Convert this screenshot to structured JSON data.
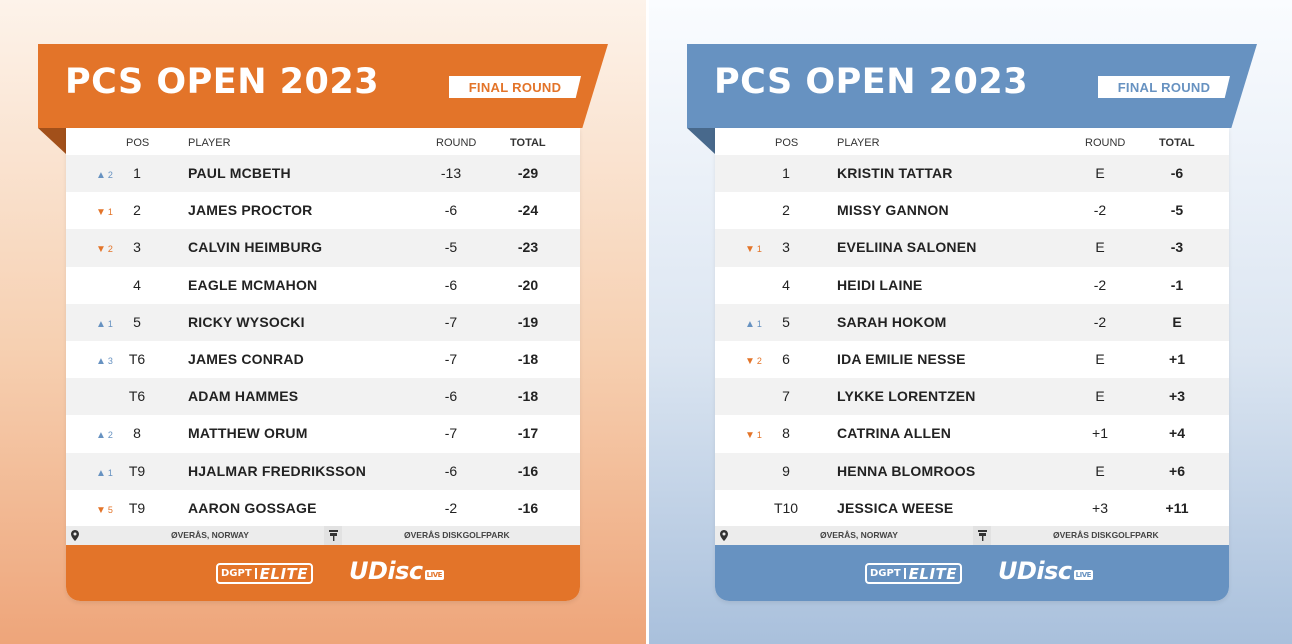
{
  "colors": {
    "orange": "#e37429",
    "blue": "#6792c1",
    "up": "#6792c1",
    "down": "#e37429"
  },
  "icons": {
    "location": "map-pin-icon",
    "course": "basket-icon"
  },
  "left": {
    "title": "PCS OPEN 2023",
    "round_label": "FINAL ROUND",
    "headers": {
      "pos": "POS",
      "player": "PLAYER",
      "round": "ROUND",
      "total": "TOTAL"
    },
    "rows": [
      {
        "move_dir": "up",
        "move": "2",
        "pos": "1",
        "player": "PAUL MCBETH",
        "round": "-13",
        "total": "-29"
      },
      {
        "move_dir": "down",
        "move": "1",
        "pos": "2",
        "player": "JAMES PROCTOR",
        "round": "-6",
        "total": "-24"
      },
      {
        "move_dir": "down",
        "move": "2",
        "pos": "3",
        "player": "CALVIN HEIMBURG",
        "round": "-5",
        "total": "-23"
      },
      {
        "move_dir": "",
        "move": "",
        "pos": "4",
        "player": "EAGLE MCMAHON",
        "round": "-6",
        "total": "-20"
      },
      {
        "move_dir": "up",
        "move": "1",
        "pos": "5",
        "player": "RICKY WYSOCKI",
        "round": "-7",
        "total": "-19"
      },
      {
        "move_dir": "up",
        "move": "3",
        "pos": "T6",
        "player": "JAMES CONRAD",
        "round": "-7",
        "total": "-18"
      },
      {
        "move_dir": "",
        "move": "",
        "pos": "T6",
        "player": "ADAM HAMMES",
        "round": "-6",
        "total": "-18"
      },
      {
        "move_dir": "up",
        "move": "2",
        "pos": "8",
        "player": "MATTHEW ORUM",
        "round": "-7",
        "total": "-17"
      },
      {
        "move_dir": "up",
        "move": "1",
        "pos": "T9",
        "player": "HJALMAR FREDRIKSSON",
        "round": "-6",
        "total": "-16"
      },
      {
        "move_dir": "down",
        "move": "5",
        "pos": "T9",
        "player": "AARON GOSSAGE",
        "round": "-2",
        "total": "-16"
      }
    ],
    "location": "ØVERÅS, NORWAY",
    "course": "ØVERÅS DISKGOLFPARK",
    "logo_dgpt_left": "DGPT",
    "logo_dgpt_right": "ELITE",
    "logo_udisc": "UDisc",
    "logo_live": "LIVE"
  },
  "right": {
    "title": "PCS OPEN 2023",
    "round_label": "FINAL ROUND",
    "headers": {
      "pos": "POS",
      "player": "PLAYER",
      "round": "ROUND",
      "total": "TOTAL"
    },
    "rows": [
      {
        "move_dir": "",
        "move": "",
        "pos": "1",
        "player": "KRISTIN TATTAR",
        "round": "E",
        "total": "-6"
      },
      {
        "move_dir": "",
        "move": "",
        "pos": "2",
        "player": "MISSY GANNON",
        "round": "-2",
        "total": "-5"
      },
      {
        "move_dir": "down",
        "move": "1",
        "pos": "3",
        "player": "EVELIINA SALONEN",
        "round": "E",
        "total": "-3"
      },
      {
        "move_dir": "",
        "move": "",
        "pos": "4",
        "player": "HEIDI LAINE",
        "round": "-2",
        "total": "-1"
      },
      {
        "move_dir": "up",
        "move": "1",
        "pos": "5",
        "player": "SARAH HOKOM",
        "round": "-2",
        "total": "E"
      },
      {
        "move_dir": "down",
        "move": "2",
        "pos": "6",
        "player": "IDA EMILIE NESSE",
        "round": "E",
        "total": "+1"
      },
      {
        "move_dir": "",
        "move": "",
        "pos": "7",
        "player": "LYKKE LORENTZEN",
        "round": "E",
        "total": "+3"
      },
      {
        "move_dir": "down",
        "move": "1",
        "pos": "8",
        "player": "CATRINA ALLEN",
        "round": "+1",
        "total": "+4"
      },
      {
        "move_dir": "",
        "move": "",
        "pos": "9",
        "player": "HENNA BLOMROOS",
        "round": "E",
        "total": "+6"
      },
      {
        "move_dir": "",
        "move": "",
        "pos": "T10",
        "player": "JESSICA WEESE",
        "round": "+3",
        "total": "+11"
      }
    ],
    "location": "ØVERÅS, NORWAY",
    "course": "ØVERÅS DISKGOLFPARK",
    "logo_dgpt_left": "DGPT",
    "logo_dgpt_right": "ELITE",
    "logo_udisc": "UDisc",
    "logo_live": "LIVE"
  }
}
